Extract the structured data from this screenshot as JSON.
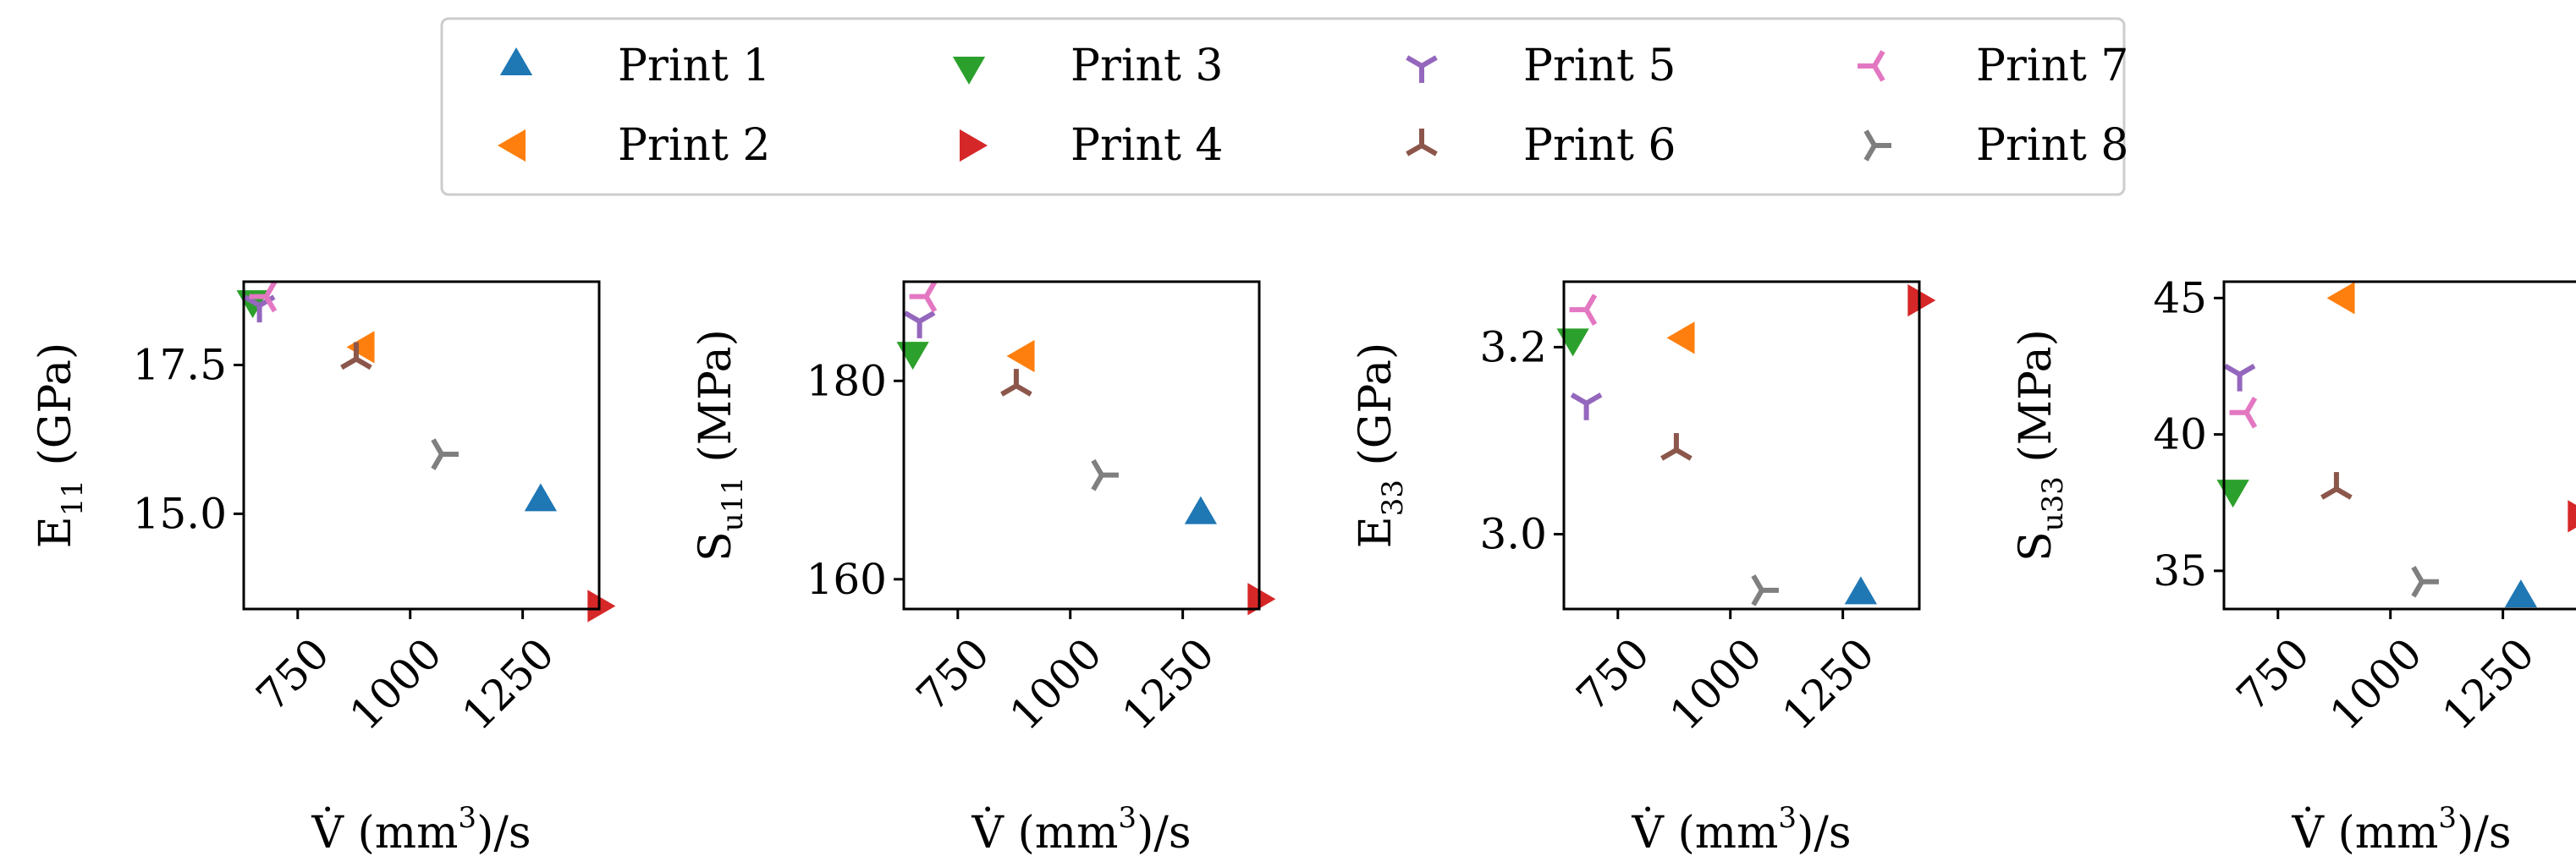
{
  "legend": {
    "placement": "top-center",
    "entries": [
      {
        "name": "Print 1",
        "marker": "triangle-up",
        "color": "#1f77b4"
      },
      {
        "name": "Print 2",
        "marker": "triangle-left",
        "color": "#ff7f0e"
      },
      {
        "name": "Print 3",
        "marker": "triangle-down",
        "color": "#2ca02c"
      },
      {
        "name": "Print 4",
        "marker": "triangle-right",
        "color": "#d62728"
      },
      {
        "name": "Print 5",
        "marker": "tri-down",
        "color": "#9467bd"
      },
      {
        "name": "Print 6",
        "marker": "tri-up",
        "color": "#8c564b"
      },
      {
        "name": "Print 7",
        "marker": "tri-left",
        "color": "#e377c2"
      },
      {
        "name": "Print 8",
        "marker": "tri-right",
        "color": "#7f7f7f"
      }
    ]
  },
  "chart_data": [
    {
      "type": "scatter",
      "xlabel": "V̇ (mm³)/s",
      "ylabel": "E₁₁ (GPa)",
      "xlim": [
        630,
        1420
      ],
      "ylim": [
        13.4,
        18.9
      ],
      "xticks": [
        "750",
        "1000",
        "1250"
      ],
      "yticks": [
        "15.0",
        "17.5"
      ],
      "series": [
        {
          "name": "Print 1",
          "x": 1290,
          "y": 15.2
        },
        {
          "name": "Print 2",
          "x": 900,
          "y": 17.8
        },
        {
          "name": "Print 3",
          "x": 650,
          "y": 18.6
        },
        {
          "name": "Print 4",
          "x": 1415,
          "y": 13.45
        },
        {
          "name": "Print 5",
          "x": 665,
          "y": 18.5
        },
        {
          "name": "Print 6",
          "x": 880,
          "y": 17.6
        },
        {
          "name": "Print 7",
          "x": 680,
          "y": 18.65
        },
        {
          "name": "Print 8",
          "x": 1070,
          "y": 16.0
        }
      ]
    },
    {
      "type": "scatter",
      "xlabel": "V̇ (mm³)/s",
      "ylabel": "Sᵤ₁₁ (MPa)",
      "xlim": [
        630,
        1420
      ],
      "ylim": [
        157,
        190
      ],
      "xticks": [
        "750",
        "1000",
        "1250"
      ],
      "yticks": [
        "160",
        "180"
      ],
      "series": [
        {
          "name": "Print 1",
          "x": 1290,
          "y": 166.5
        },
        {
          "name": "Print 2",
          "x": 900,
          "y": 182.5
        },
        {
          "name": "Print 3",
          "x": 650,
          "y": 183
        },
        {
          "name": "Print 4",
          "x": 1415,
          "y": 158
        },
        {
          "name": "Print 5",
          "x": 665,
          "y": 186
        },
        {
          "name": "Print 6",
          "x": 880,
          "y": 179.5
        },
        {
          "name": "Print 7",
          "x": 680,
          "y": 188.5
        },
        {
          "name": "Print 8",
          "x": 1070,
          "y": 170.5
        }
      ]
    },
    {
      "type": "scatter",
      "xlabel": "V̇ (mm³)/s",
      "ylabel": "E₃₃ (GPa)",
      "xlim": [
        630,
        1420
      ],
      "ylim": [
        2.92,
        3.27
      ],
      "xticks": [
        "750",
        "1000",
        "1250"
      ],
      "yticks": [
        "3.0",
        "3.2"
      ],
      "series": [
        {
          "name": "Print 1",
          "x": 1290,
          "y": 2.935
        },
        {
          "name": "Print 2",
          "x": 900,
          "y": 3.21
        },
        {
          "name": "Print 3",
          "x": 650,
          "y": 3.21
        },
        {
          "name": "Print 4",
          "x": 1415,
          "y": 3.25
        },
        {
          "name": "Print 5",
          "x": 680,
          "y": 3.14
        },
        {
          "name": "Print 6",
          "x": 880,
          "y": 3.09
        },
        {
          "name": "Print 7",
          "x": 680,
          "y": 3.24
        },
        {
          "name": "Print 8",
          "x": 1070,
          "y": 2.94
        }
      ]
    },
    {
      "type": "scatter",
      "xlabel": "V̇ (mm³)/s",
      "ylabel": "Sᵤ₃₃ (MPa)",
      "xlim": [
        630,
        1420
      ],
      "ylim": [
        33.6,
        45.6
      ],
      "xticks": [
        "750",
        "1000",
        "1250"
      ],
      "yticks": [
        "35",
        "40",
        "45"
      ],
      "series": [
        {
          "name": "Print 1",
          "x": 1290,
          "y": 34.0
        },
        {
          "name": "Print 2",
          "x": 900,
          "y": 45.0
        },
        {
          "name": "Print 3",
          "x": 650,
          "y": 38.0
        },
        {
          "name": "Print 4",
          "x": 1415,
          "y": 37.0
        },
        {
          "name": "Print 5",
          "x": 665,
          "y": 42.2
        },
        {
          "name": "Print 6",
          "x": 880,
          "y": 38.0
        },
        {
          "name": "Print 7",
          "x": 680,
          "y": 40.8
        },
        {
          "name": "Print 8",
          "x": 1070,
          "y": 34.6
        }
      ]
    }
  ]
}
